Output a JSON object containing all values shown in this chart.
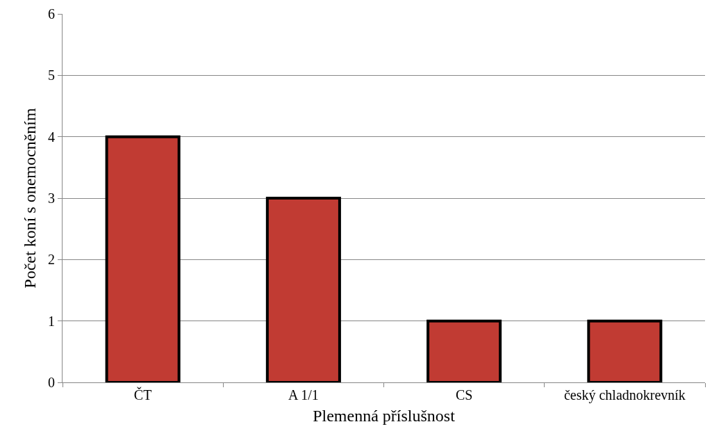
{
  "chart_data": {
    "type": "bar",
    "xlabel": "Plemenná příslušnost",
    "ylabel": "Počet koní s onemocněním",
    "categories": [
      "ČT",
      "A 1/1",
      "CS",
      "český chladnokrevník"
    ],
    "values": [
      4,
      3,
      1,
      1
    ],
    "color": "#c13b33",
    "ylim": [
      0,
      6
    ],
    "yticks": [
      0,
      1,
      2,
      3,
      4,
      5,
      6
    ],
    "grid": "y",
    "legend": false
  }
}
